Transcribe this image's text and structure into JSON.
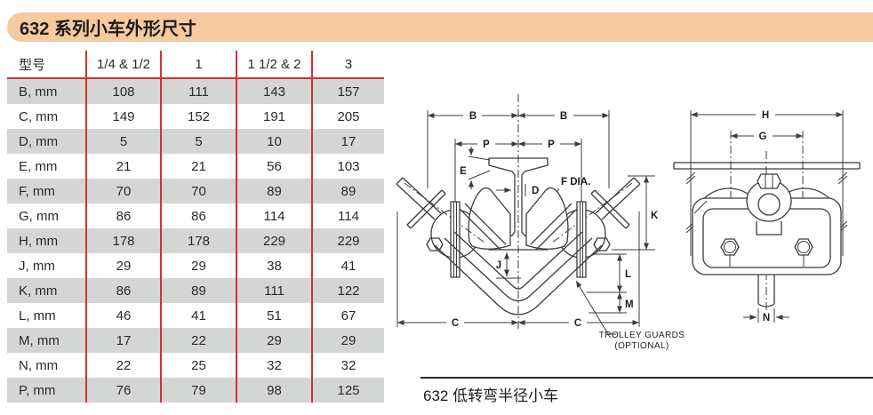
{
  "banner": {
    "title": "632 系列小车外形尺寸"
  },
  "table": {
    "columns": [
      "型号",
      "1/4 & 1/2",
      "1",
      "1 1/2 & 2",
      "3"
    ],
    "rows": [
      {
        "label": "B, mm",
        "values": [
          "108",
          "111",
          "143",
          "157"
        ]
      },
      {
        "label": "C, mm",
        "values": [
          "149",
          "152",
          "191",
          "205"
        ]
      },
      {
        "label": "D, mm",
        "values": [
          "5",
          "5",
          "10",
          "17"
        ]
      },
      {
        "label": "E, mm",
        "values": [
          "21",
          "21",
          "56",
          "103"
        ]
      },
      {
        "label": "F, mm",
        "values": [
          "70",
          "70",
          "89",
          "89"
        ]
      },
      {
        "label": "G, mm",
        "values": [
          "86",
          "86",
          "114",
          "114"
        ]
      },
      {
        "label": "H, mm",
        "values": [
          "178",
          "178",
          "229",
          "229"
        ]
      },
      {
        "label": "J, mm",
        "values": [
          "29",
          "29",
          "38",
          "41"
        ]
      },
      {
        "label": "K, mm",
        "values": [
          "86",
          "89",
          "111",
          "122"
        ]
      },
      {
        "label": "L, mm",
        "values": [
          "46",
          "41",
          "51",
          "67"
        ]
      },
      {
        "label": "M, mm",
        "values": [
          "17",
          "22",
          "29",
          "29"
        ]
      },
      {
        "label": "N, mm",
        "values": [
          "22",
          "25",
          "32",
          "32"
        ]
      },
      {
        "label": "P, mm",
        "values": [
          "76",
          "79",
          "98",
          "125"
        ]
      }
    ]
  },
  "diagram": {
    "front": {
      "b": "B",
      "p": "P",
      "c": "C",
      "e": "E",
      "d": "D",
      "f": "F DIA.",
      "k": "K",
      "j": "J",
      "l": "L",
      "m": "M",
      "guards_note_1": "TROLLEY GUARDS",
      "guards_note_2": "(OPTIONAL)"
    },
    "side": {
      "h": "H",
      "g": "G",
      "n": "N"
    }
  },
  "caption": "632 低转弯半径小车",
  "colors": {
    "banner_bg": "#f6c99f",
    "table_rule_red": "#cf352c",
    "row_alt_gray": "#d4d5d5"
  }
}
